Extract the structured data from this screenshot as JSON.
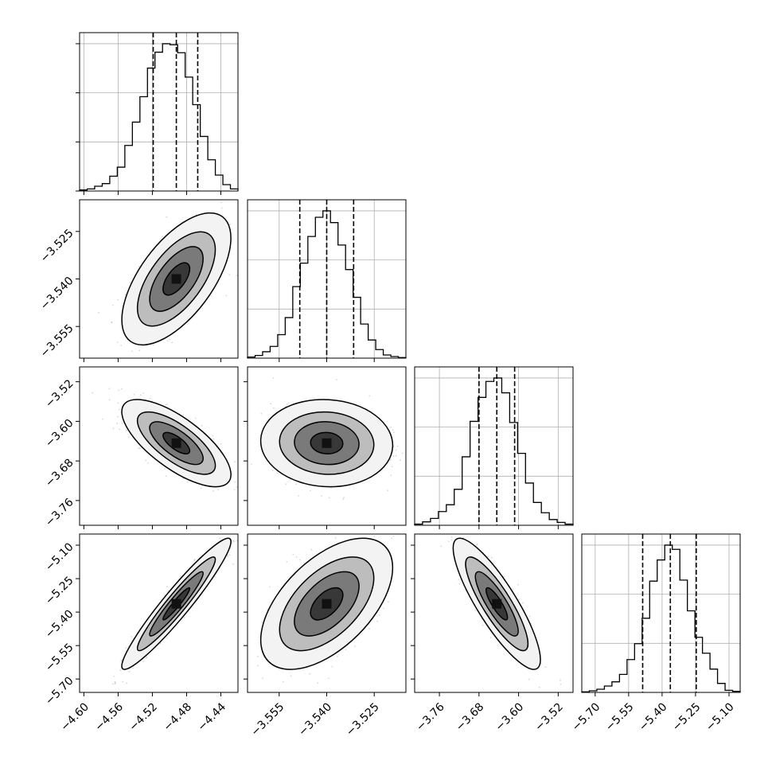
{
  "chart_data": {
    "type": "corner",
    "n_params": 4,
    "axis_ranges": [
      [
        -4.605,
        -4.42
      ],
      [
        -3.565,
        -3.515
      ],
      [
        -3.81,
        -3.49
      ],
      [
        -5.76,
        -5.05
      ]
    ],
    "tick_values": [
      [
        -4.6,
        -4.56,
        -4.52,
        -4.48,
        -4.44
      ],
      [
        -3.555,
        -3.54,
        -3.525
      ],
      [
        -3.76,
        -3.68,
        -3.6,
        -3.52
      ],
      [
        -5.7,
        -5.55,
        -5.4,
        -5.25,
        -5.1
      ]
    ],
    "tick_labels": [
      [
        "−4.60",
        "−4.56",
        "−4.52",
        "−4.48",
        "−4.44"
      ],
      [
        "−3.555",
        "−3.540",
        "−3.525"
      ],
      [
        "−3.76",
        "−3.68",
        "−3.60",
        "−3.52"
      ],
      [
        "−5.70",
        "−5.55",
        "−5.40",
        "−5.25",
        "−5.10"
      ]
    ],
    "quantiles": [
      [
        -4.519,
        -4.492,
        -4.467
      ],
      [
        -3.5485,
        -3.54,
        -3.5315
      ],
      [
        -3.68,
        -3.644,
        -3.608
      ],
      [
        -5.487,
        -5.363,
        -5.247
      ]
    ],
    "histograms": [
      {
        "counts": [
          2,
          4,
          9,
          14,
          28,
          45,
          86,
          130,
          178,
          232,
          262,
          278,
          276,
          261,
          215,
          163,
          103,
          59,
          30,
          12,
          4
        ],
        "peak_frac": 0.93
      },
      {
        "counts": [
          2,
          5,
          12,
          22,
          44,
          76,
          134,
          178,
          228,
          264,
          276,
          254,
          212,
          166,
          114,
          64,
          34,
          16,
          6,
          3,
          1
        ],
        "peak_frac": 0.93
      },
      {
        "counts": [
          2,
          6,
          12,
          24,
          36,
          63,
          120,
          182,
          224,
          252,
          258,
          232,
          180,
          126,
          74,
          40,
          22,
          10,
          5,
          2
        ],
        "peak_frac": 0.93
      },
      {
        "counts": [
          1,
          3,
          6,
          12,
          20,
          34,
          62,
          92,
          140,
          210,
          250,
          278,
          270,
          212,
          154,
          104,
          74,
          44,
          17,
          4,
          2
        ],
        "peak_frac": 0.93
      }
    ],
    "correlations": [
      [
        1,
        0.62,
        -0.72,
        0.95
      ],
      [
        0.62,
        1,
        -0.05,
        0.55
      ],
      [
        -0.72,
        -0.05,
        1,
        -0.85
      ],
      [
        0.95,
        0.55,
        -0.85,
        1
      ]
    ],
    "grid": true,
    "colors": {
      "line": "#000000",
      "points": "#8c8c8c",
      "grid": "#b0b0b0"
    }
  }
}
